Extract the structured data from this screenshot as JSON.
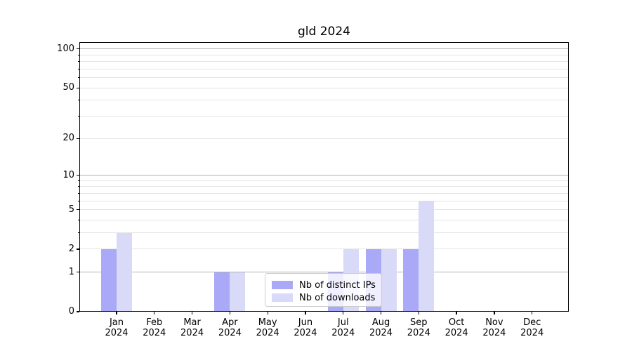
{
  "title": "gld 2024",
  "chart_data": {
    "type": "bar",
    "title": "gld 2024",
    "categories": [
      "Jan",
      "Feb",
      "Mar",
      "Apr",
      "May",
      "Jun",
      "Jul",
      "Aug",
      "Sep",
      "Oct",
      "Nov",
      "Dec"
    ],
    "x_year": "2024",
    "series": [
      {
        "name": "Nb of distinct IPs",
        "color": "#a9a9f7",
        "values": [
          2,
          0,
          0,
          1,
          0,
          0,
          1,
          2,
          2,
          0,
          0,
          0
        ]
      },
      {
        "name": "Nb of downloads",
        "color": "#d9d9f8",
        "values": [
          3,
          0,
          0,
          1,
          0,
          0,
          2,
          2,
          6,
          0,
          0,
          0
        ]
      }
    ],
    "yscale": "log1p",
    "ylim": [
      0,
      113
    ],
    "y_ticks": [
      0,
      1,
      2,
      5,
      10,
      20,
      50,
      100
    ],
    "y_minor_ticks": [
      3,
      4,
      6,
      7,
      8,
      9,
      30,
      40,
      60,
      70,
      80,
      90
    ],
    "grid": "on",
    "legend_position": "lower center"
  },
  "colors": {
    "bar_ips": "#a9a9f7",
    "bar_downloads": "#d9d9f8",
    "grid_decade": "#b2b2b2",
    "grid_minor": "#e4e4e4",
    "axis": "#000000",
    "legend_border": "#cccccc"
  }
}
